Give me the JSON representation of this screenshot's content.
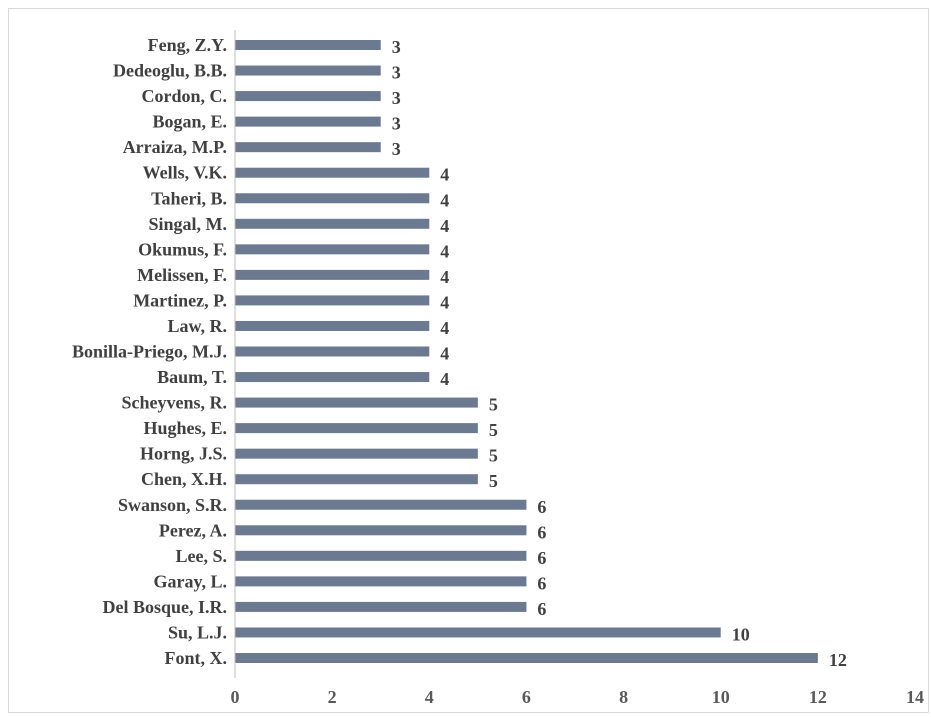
{
  "chart_data": {
    "type": "bar",
    "orientation": "horizontal",
    "categories": [
      "Feng, Z.Y.",
      "Dedeoglu, B.B.",
      "Cordon, C.",
      "Bogan, E.",
      "Arraiza, M.P.",
      "Wells, V.K.",
      "Taheri, B.",
      "Singal, M.",
      "Okumus, F.",
      "Melissen, F.",
      "Martinez, P.",
      "Law, R.",
      "Bonilla-Priego, M.J.",
      "Baum, T.",
      "Scheyvens, R.",
      "Hughes, E.",
      "Horng, J.S.",
      "Chen, X.H.",
      "Swanson, S.R.",
      "Perez, A.",
      "Lee, S.",
      "Garay, L.",
      "Del Bosque, I.R.",
      "Su, L.J.",
      "Font, X."
    ],
    "values": [
      3,
      3,
      3,
      3,
      3,
      4,
      4,
      4,
      4,
      4,
      4,
      4,
      4,
      4,
      5,
      5,
      5,
      5,
      6,
      6,
      6,
      6,
      6,
      10,
      12
    ],
    "data_labels": [
      "3",
      "3",
      "3",
      "3",
      "3",
      "4",
      "4",
      "4",
      "4",
      "4",
      "4",
      "4",
      "4",
      "4",
      "5",
      "5",
      "5",
      "5",
      "6",
      "6",
      "6",
      "6",
      "6",
      "10",
      "12"
    ],
    "x_ticks": [
      "0",
      "2",
      "4",
      "6",
      "8",
      "10",
      "12",
      "14"
    ],
    "xlim": [
      0,
      14
    ],
    "title": "",
    "xlabel": "",
    "ylabel": "",
    "grid": false,
    "legend": "none",
    "bar_color": "#6b7a91",
    "axis_color": "#bfbfbf",
    "label_color": "#404040",
    "tick_color": "#595959"
  }
}
